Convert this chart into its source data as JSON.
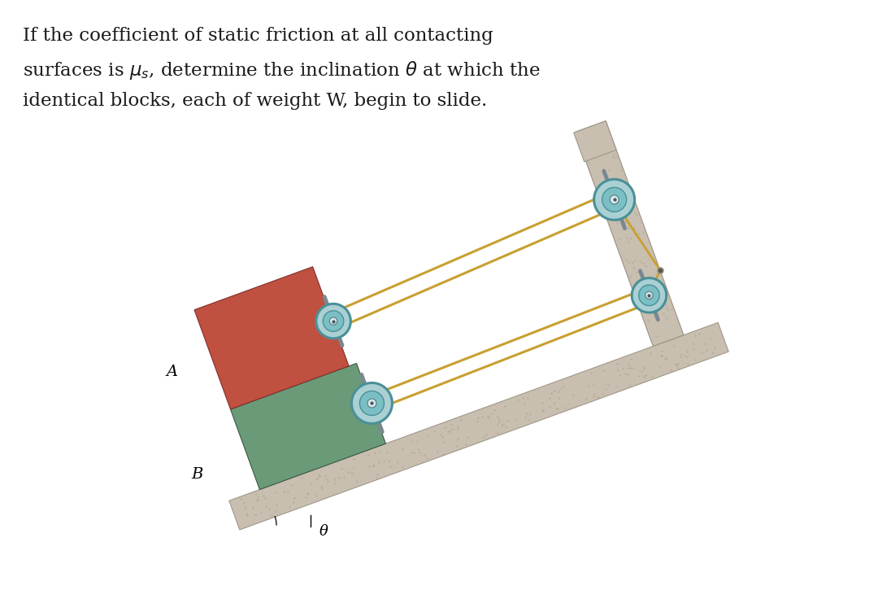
{
  "background_color": "#ffffff",
  "text_color": "#1a1a1a",
  "block_A_color": "#c05040",
  "block_B_color": "#6b9a78",
  "ramp_color": "#c8bfb0",
  "pulley_outer_color": "#7abfc4",
  "pulley_rim_color": "#4a9098",
  "pulley_hub_color": "#aad0d4",
  "axle_color": "#7a8890",
  "rope_color": "#c8a030",
  "wall_color": "#c8bfb0",
  "wall_edge_color": "#a09888",
  "label_A": "A",
  "label_B": "B",
  "label_theta": "θ",
  "inclination_deg": 20,
  "fig_width": 10.8,
  "fig_height": 7.25,
  "dpi": 100
}
